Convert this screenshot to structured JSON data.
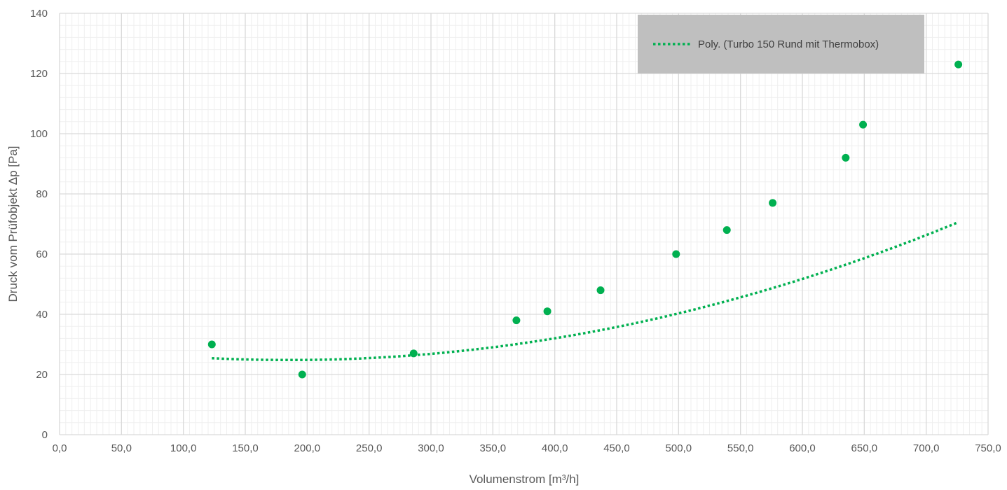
{
  "chart_data": {
    "type": "scatter",
    "xlabel": "Volumenstrom [m³/h]",
    "ylabel": "Druck vom Prüfobjekt  Δp [Pa]",
    "xlim": [
      0,
      750
    ],
    "ylim": [
      0,
      140
    ],
    "x_tick_values": [
      0,
      50,
      100,
      150,
      200,
      250,
      300,
      350,
      400,
      450,
      500,
      550,
      600,
      650,
      700,
      750
    ],
    "x_tick_labels": [
      "0,0",
      "50,0",
      "100,0",
      "150,0",
      "200,0",
      "250,0",
      "300,0",
      "350,0",
      "400,0",
      "450,0",
      "500,0",
      "550,0",
      "600,0",
      "650,0",
      "700,0",
      "750,0"
    ],
    "y_tick_values": [
      0,
      20,
      40,
      60,
      80,
      100,
      120,
      140
    ],
    "y_tick_labels": [
      "0",
      "20",
      "40",
      "60",
      "80",
      "100",
      "120",
      "140"
    ],
    "grid": true,
    "legend_position": "top-right",
    "points": [
      {
        "x": 123,
        "y": 30
      },
      {
        "x": 196,
        "y": 20
      },
      {
        "x": 286,
        "y": 27
      },
      {
        "x": 369,
        "y": 38
      },
      {
        "x": 394,
        "y": 41
      },
      {
        "x": 437,
        "y": 48
      },
      {
        "x": 498,
        "y": 60
      },
      {
        "x": 539,
        "y": 68
      },
      {
        "x": 576,
        "y": 77
      },
      {
        "x": 635,
        "y": 92
      },
      {
        "x": 649,
        "y": 103
      },
      {
        "x": 726,
        "y": 123
      }
    ],
    "trendline": {
      "name": "Poly. (Turbo 150 Rund mit Thermobox)",
      "degree": 2,
      "x_range": [
        123,
        726
      ],
      "coefficients": [
        30.21,
        -0.0582,
        0.0001568
      ]
    },
    "colors": {
      "series": "#00b050",
      "legend_bg": "#bfbfbf",
      "grid_major": "#d9d9d9",
      "grid_minor": "#efefef"
    }
  }
}
